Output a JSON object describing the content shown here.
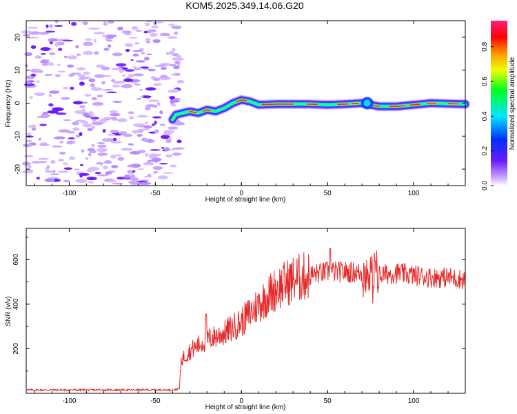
{
  "title": "KOM5.2025.349.14.06.G20",
  "chart_data": [
    {
      "type": "heatmap",
      "name": "spectrogram",
      "xlabel": "Height of straight line (km)",
      "ylabel": "Frequency (Hz)",
      "xlim": [
        -125,
        130
      ],
      "ylim": [
        -25,
        25
      ],
      "xticks": [
        -100,
        -50,
        0,
        50,
        100
      ],
      "yticks": [
        -20,
        -10,
        0,
        10,
        20
      ],
      "colorbar": {
        "label": "Normalized spectral amplitude",
        "range": [
          0,
          0.95
        ],
        "ticks": [
          0.0,
          0.2,
          0.4,
          0.6,
          0.8
        ],
        "colormap": [
          "#ff00ff",
          "#ff0000",
          "#ffff00",
          "#00ff00",
          "#00ffff",
          "#0000ff",
          "#c8a0ff"
        ]
      },
      "track": {
        "description_points_km_hz": [
          [
            -40,
            -5
          ],
          [
            -38,
            -3.5
          ],
          [
            -30,
            -2.5
          ],
          [
            -25,
            -3
          ],
          [
            -20,
            -2
          ],
          [
            -15,
            -2.5
          ],
          [
            -10,
            -1.5
          ],
          [
            -5,
            0
          ],
          [
            0,
            1
          ],
          [
            5,
            0.5
          ],
          [
            10,
            -0.5
          ],
          [
            20,
            -0.3
          ],
          [
            40,
            -0.3
          ],
          [
            50,
            -0.5
          ],
          [
            60,
            -0.3
          ],
          [
            70,
            0
          ],
          [
            75,
            -0.5
          ],
          [
            80,
            -1
          ],
          [
            90,
            -1
          ],
          [
            100,
            -0.5
          ],
          [
            110,
            0
          ],
          [
            130,
            -0.3
          ]
        ]
      },
      "noise_region_km": [
        -125,
        -40
      ]
    },
    {
      "type": "line",
      "name": "snr",
      "xlabel": "Height of straight line (km)",
      "ylabel": "SNR (v/v)",
      "xlim": [
        -125,
        130
      ],
      "ylim": [
        0,
        740
      ],
      "xticks": [
        -100,
        -50,
        0,
        50,
        100
      ],
      "yticks": [
        200,
        400,
        600
      ],
      "series": [
        {
          "name": "SNR",
          "color": "#e62828",
          "trend_km_snr": [
            [
              -125,
              15
            ],
            [
              -40,
              15
            ],
            [
              -36,
              20
            ],
            [
              -35,
              150
            ],
            [
              -30,
              190
            ],
            [
              -20,
              240
            ],
            [
              -10,
              270
            ],
            [
              0,
              320
            ],
            [
              10,
              400
            ],
            [
              20,
              470
            ],
            [
              30,
              510
            ],
            [
              40,
              530
            ],
            [
              50,
              545
            ],
            [
              60,
              545
            ],
            [
              70,
              540
            ],
            [
              75,
              520
            ],
            [
              80,
              530
            ],
            [
              90,
              540
            ],
            [
              100,
              530
            ],
            [
              110,
              520
            ],
            [
              120,
              520
            ],
            [
              130,
              510
            ]
          ]
        }
      ]
    }
  ]
}
